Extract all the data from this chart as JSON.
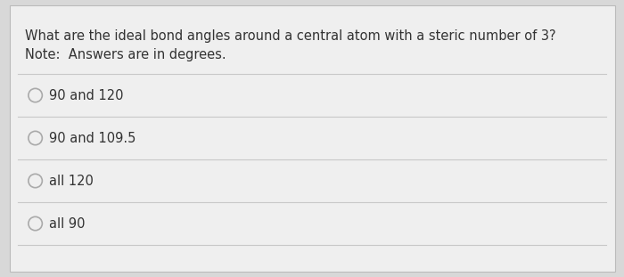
{
  "question_line1": "What are the ideal bond angles around a central atom with a steric number of 3?",
  "question_line2": "Note:  Answers are in degrees.",
  "options": [
    "90 and 120",
    "90 and 109.5",
    "all 120",
    "all 90"
  ],
  "bg_color": "#d8d8d8",
  "card_color": "#efefef",
  "text_color": "#333333",
  "line_color": "#c8c8c8",
  "circle_edge_color": "#aaaaaa",
  "question_fontsize": 10.5,
  "option_fontsize": 10.5,
  "fig_width": 7.0,
  "fig_height": 3.11
}
